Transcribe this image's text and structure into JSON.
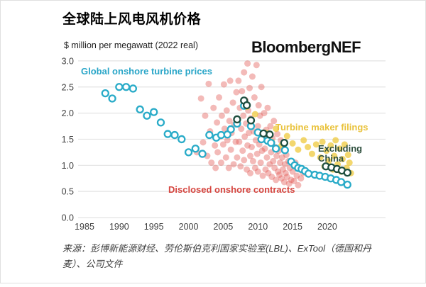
{
  "header": {
    "title": "全球陆上风电风机价格",
    "subtitle": "$ million per megawatt (2022 real)",
    "logo": "BloombergNEF"
  },
  "footer": {
    "source": "来源：彭博新能源财经、劳伦斯伯克利国家实验室(LBL)、ExTool（德国和丹麦）、公司文件"
  },
  "colors": {
    "turbine_price_line": "#29abc8",
    "contracts_dots": "#e0524e",
    "maker_filings_dots": "#efc93d",
    "excluding_china_line": "#1e4e3f",
    "gridline": "#e3e3e3",
    "axis_text": "#3f3f3f"
  },
  "chart_data": {
    "type": "scatter",
    "title": "全球陆上风电风机价格",
    "subtitle": "$ million per megawatt (2022 real)",
    "xlabel": "",
    "ylabel": "$ million per megawatt (2022 real)",
    "xlim": [
      1984,
      2024.5
    ],
    "ylim": [
      0.0,
      3.0
    ],
    "xticks": [
      1985,
      1990,
      1995,
      2000,
      2005,
      2010,
      2015,
      2020
    ],
    "yticks": [
      "0.0",
      "0.5",
      "1.0",
      "1.5",
      "2.0",
      "2.5",
      "3.0"
    ],
    "grid": "horizontal",
    "legend_position": "annotations-on-plot",
    "series": [
      {
        "name": "Disclosed onshore contracts",
        "marker": "dot",
        "color": "#e0524e",
        "label_color": "#d6453f",
        "opacity": 0.4,
        "points": [
          [
            2001.2,
            1.25
          ],
          [
            2001.8,
            2.28
          ],
          [
            2002.1,
            1.44
          ],
          [
            2002.4,
            1.95
          ],
          [
            2002.7,
            1.18
          ],
          [
            2002.9,
            2.56
          ],
          [
            2003.1,
            1.65
          ],
          [
            2003.3,
            1.05
          ],
          [
            2003.6,
            2.1
          ],
          [
            2003.8,
            1.38
          ],
          [
            2003.9,
            0.95
          ],
          [
            2004.1,
            1.82
          ],
          [
            2004.2,
            1.25
          ],
          [
            2004.4,
            2.3
          ],
          [
            2004.5,
            1.55
          ],
          [
            2004.7,
            1.05
          ],
          [
            2004.8,
            1.95
          ],
          [
            2005.0,
            1.4
          ],
          [
            2005.1,
            2.55
          ],
          [
            2005.2,
            1.7
          ],
          [
            2005.4,
            1.15
          ],
          [
            2005.5,
            2.05
          ],
          [
            2005.6,
            1.48
          ],
          [
            2005.8,
            0.95
          ],
          [
            2005.9,
            1.85
          ],
          [
            2006.0,
            2.62
          ],
          [
            2006.1,
            1.3
          ],
          [
            2006.2,
            1.62
          ],
          [
            2006.4,
            2.2
          ],
          [
            2006.5,
            1.02
          ],
          [
            2006.6,
            1.78
          ],
          [
            2006.8,
            1.45
          ],
          [
            2006.9,
            2.4
          ],
          [
            2007.0,
            1.15
          ],
          [
            2007.1,
            1.88
          ],
          [
            2007.2,
            2.62
          ],
          [
            2007.3,
            1.45
          ],
          [
            2007.4,
            2.1
          ],
          [
            2007.5,
            0.98
          ],
          [
            2007.6,
            1.7
          ],
          [
            2007.7,
            2.42
          ],
          [
            2007.8,
            1.28
          ],
          [
            2007.9,
            1.95
          ],
          [
            2008.0,
            2.78
          ],
          [
            2008.0,
            1.1
          ],
          [
            2008.1,
            1.55
          ],
          [
            2008.2,
            2.25
          ],
          [
            2008.3,
            1.8
          ],
          [
            2008.4,
            0.92
          ],
          [
            2008.5,
            2.95
          ],
          [
            2008.5,
            1.38
          ],
          [
            2008.6,
            2.05
          ],
          [
            2008.7,
            1.62
          ],
          [
            2008.8,
            2.48
          ],
          [
            2008.9,
            1.18
          ],
          [
            2008.9,
            0.85
          ],
          [
            2009.0,
            1.9
          ],
          [
            2009.1,
            1.35
          ],
          [
            2009.2,
            2.7
          ],
          [
            2009.3,
            1.08
          ],
          [
            2009.4,
            1.65
          ],
          [
            2009.5,
            2.3
          ],
          [
            2009.6,
            0.95
          ],
          [
            2009.7,
            1.48
          ],
          [
            2009.8,
            2.92
          ],
          [
            2009.9,
            1.22
          ],
          [
            2010.0,
            1.75
          ],
          [
            2010.0,
            0.88
          ],
          [
            2010.1,
            2.15
          ],
          [
            2010.2,
            1.4
          ],
          [
            2010.3,
            1.95
          ],
          [
            2010.4,
            1.05
          ],
          [
            2010.5,
            2.5
          ],
          [
            2010.6,
            1.28
          ],
          [
            2010.7,
            0.8
          ],
          [
            2010.8,
            1.58
          ],
          [
            2010.9,
            2.0
          ],
          [
            2011.0,
            1.32
          ],
          [
            2011.1,
            0.92
          ],
          [
            2011.2,
            1.68
          ],
          [
            2011.3,
            1.15
          ],
          [
            2011.4,
            2.1
          ],
          [
            2011.5,
            0.85
          ],
          [
            2011.6,
            1.45
          ],
          [
            2011.7,
            1.02
          ],
          [
            2011.8,
            1.75
          ],
          [
            2011.9,
            1.25
          ],
          [
            2012.0,
            0.78
          ],
          [
            2012.1,
            1.52
          ],
          [
            2012.2,
            1.08
          ],
          [
            2012.3,
            1.85
          ],
          [
            2012.4,
            0.95
          ],
          [
            2012.5,
            1.35
          ],
          [
            2012.6,
            0.72
          ],
          [
            2012.7,
            1.18
          ],
          [
            2012.8,
            1.6
          ],
          [
            2012.9,
            0.88
          ],
          [
            2013.0,
            1.28
          ],
          [
            2013.1,
            0.82
          ],
          [
            2013.2,
            1.05
          ],
          [
            2013.3,
            1.48
          ],
          [
            2013.4,
            0.75
          ],
          [
            2013.5,
            1.15
          ],
          [
            2013.6,
            0.92
          ],
          [
            2013.7,
            1.32
          ],
          [
            2013.8,
            0.68
          ],
          [
            2013.9,
            1.02
          ],
          [
            2014.0,
            0.85
          ],
          [
            2014.1,
            1.2
          ],
          [
            2014.2,
            0.78
          ],
          [
            2014.4,
            1.08
          ],
          [
            2014.5,
            0.65
          ],
          [
            2014.6,
            0.95
          ],
          [
            2014.8,
            0.72
          ],
          [
            2015.0,
            0.88
          ],
          [
            2015.2,
            0.7
          ],
          [
            2015.4,
            1.05
          ],
          [
            2015.6,
            0.8
          ],
          [
            2015.8,
            0.62
          ],
          [
            2016.0,
            0.92
          ],
          [
            2016.2,
            0.75
          ],
          [
            2016.5,
            0.85
          ]
        ]
      },
      {
        "name": "Turbine maker filings",
        "marker": "dot",
        "color": "#efc93d",
        "label_color": "#e9c23b",
        "opacity": 0.75,
        "points": [
          [
            2008.4,
            2.12
          ],
          [
            2009.6,
            1.98
          ],
          [
            2011.2,
            1.62
          ],
          [
            2012.0,
            1.45
          ],
          [
            2012.6,
            1.7
          ],
          [
            2013.4,
            1.38
          ],
          [
            2014.2,
            1.56
          ],
          [
            2015.0,
            1.42
          ],
          [
            2015.8,
            1.3
          ],
          [
            2016.6,
            1.48
          ],
          [
            2017.2,
            1.35
          ],
          [
            2017.8,
            1.22
          ],
          [
            2018.4,
            1.4
          ],
          [
            2019.0,
            1.15
          ],
          [
            2019.3,
            1.45
          ],
          [
            2019.6,
            0.98
          ],
          [
            2019.9,
            1.28
          ],
          [
            2020.2,
            1.08
          ],
          [
            2020.5,
            1.38
          ],
          [
            2020.8,
            0.92
          ],
          [
            2021.0,
            1.18
          ],
          [
            2021.2,
            1.48
          ],
          [
            2021.5,
            1.02
          ],
          [
            2021.8,
            1.32
          ],
          [
            2022.0,
            0.88
          ],
          [
            2022.2,
            1.12
          ],
          [
            2022.5,
            1.4
          ],
          [
            2022.8,
            0.95
          ],
          [
            2023.0,
            1.2
          ],
          [
            2023.2,
            1.05
          ],
          [
            2023.4,
            0.85
          ]
        ]
      },
      {
        "name": "Global onshore turbine prices",
        "marker": "open-circle",
        "color": "#29abc8",
        "label_color": "#2aa6c8",
        "opacity": 1,
        "points": [
          [
            1988,
            2.38
          ],
          [
            1989,
            2.28
          ],
          [
            1990,
            2.5
          ],
          [
            1991,
            2.5
          ],
          [
            1992,
            2.47
          ],
          [
            1993,
            2.07
          ],
          [
            1994,
            1.95
          ],
          [
            1995,
            2.02
          ],
          [
            1996,
            1.82
          ],
          [
            1997,
            1.6
          ],
          [
            1998,
            1.58
          ],
          [
            1999,
            1.5
          ],
          [
            2000,
            1.25
          ],
          [
            2001,
            1.32
          ],
          [
            2002,
            1.22
          ],
          [
            2003,
            1.58
          ],
          [
            2004,
            1.53
          ],
          [
            2004.7,
            1.58
          ],
          [
            2005.6,
            1.59
          ],
          [
            2006.1,
            1.69
          ],
          [
            2007,
            1.8
          ],
          [
            2008,
            2.14
          ],
          [
            2009,
            1.75
          ],
          [
            2010,
            1.63
          ],
          [
            2010.5,
            1.5
          ],
          [
            2011.4,
            1.47
          ],
          [
            2011.9,
            1.43
          ],
          [
            2012.6,
            1.32
          ],
          [
            2013.9,
            1.29
          ],
          [
            2014.8,
            1.07
          ],
          [
            2015.3,
            1.0
          ],
          [
            2015.8,
            0.95
          ],
          [
            2016.3,
            0.93
          ],
          [
            2016.8,
            0.89
          ],
          [
            2017.3,
            0.84
          ],
          [
            2018.2,
            0.82
          ],
          [
            2018.9,
            0.8
          ],
          [
            2019.7,
            0.78
          ],
          [
            2020.5,
            0.75
          ],
          [
            2021.3,
            0.72
          ],
          [
            2022.0,
            0.68
          ],
          [
            2022.9,
            0.63
          ]
        ]
      },
      {
        "name": "Excluding China",
        "marker": "open-circle",
        "color": "#1e4e3f",
        "label_color": "#2e4f3e",
        "opacity": 1,
        "points": [
          [
            2007,
            1.88
          ],
          [
            2008,
            2.24
          ],
          [
            2008.4,
            2.15
          ],
          [
            2009,
            1.86
          ],
          [
            2010.8,
            1.61
          ],
          [
            2011.7,
            1.59
          ],
          [
            2013.8,
            1.43
          ],
          [
            2019.8,
            0.98
          ],
          [
            2020.6,
            0.96
          ],
          [
            2021.4,
            0.93
          ],
          [
            2022.1,
            0.9
          ],
          [
            2022.9,
            0.86
          ]
        ]
      }
    ]
  }
}
